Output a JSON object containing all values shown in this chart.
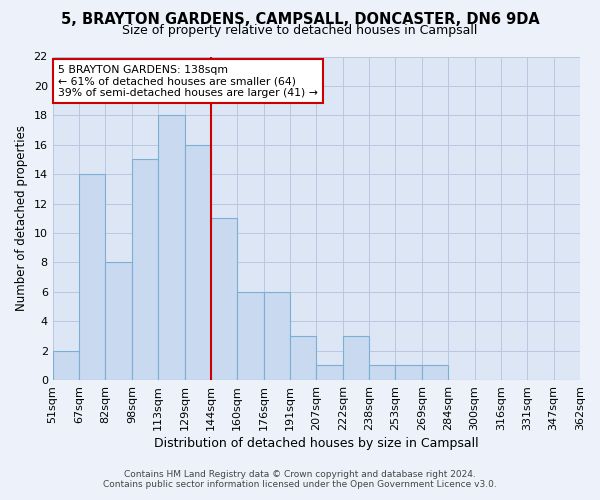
{
  "title": "5, BRAYTON GARDENS, CAMPSALL, DONCASTER, DN6 9DA",
  "subtitle": "Size of property relative to detached houses in Campsall",
  "xlabel": "Distribution of detached houses by size in Campsall",
  "ylabel": "Number of detached properties",
  "bin_edges": [
    "51sqm",
    "67sqm",
    "82sqm",
    "98sqm",
    "113sqm",
    "129sqm",
    "144sqm",
    "160sqm",
    "176sqm",
    "191sqm",
    "207sqm",
    "222sqm",
    "238sqm",
    "253sqm",
    "269sqm",
    "284sqm",
    "300sqm",
    "316sqm",
    "331sqm",
    "347sqm",
    "362sqm"
  ],
  "bar_heights": [
    2,
    14,
    8,
    15,
    18,
    16,
    11,
    6,
    6,
    3,
    1,
    3,
    1,
    1,
    1,
    0,
    0,
    0,
    0,
    0
  ],
  "ylim": [
    0,
    22
  ],
  "yticks": [
    0,
    2,
    4,
    6,
    8,
    10,
    12,
    14,
    16,
    18,
    20,
    22
  ],
  "bar_color": "#c9d9f0",
  "bar_edge_color": "#7bafd4",
  "red_line_bin_index": 6,
  "annotation_title": "5 BRAYTON GARDENS: 138sqm",
  "annotation_line1": "← 61% of detached houses are smaller (64)",
  "annotation_line2": "39% of semi-detached houses are larger (41) →",
  "red_line_color": "#cc0000",
  "annotation_box_color": "#ffffff",
  "annotation_box_edge": "#cc0000",
  "background_color": "#dde6f5",
  "fig_background_color": "#edf2fa",
  "footer_line1": "Contains HM Land Registry data © Crown copyright and database right 2024.",
  "footer_line2": "Contains public sector information licensed under the Open Government Licence v3.0."
}
